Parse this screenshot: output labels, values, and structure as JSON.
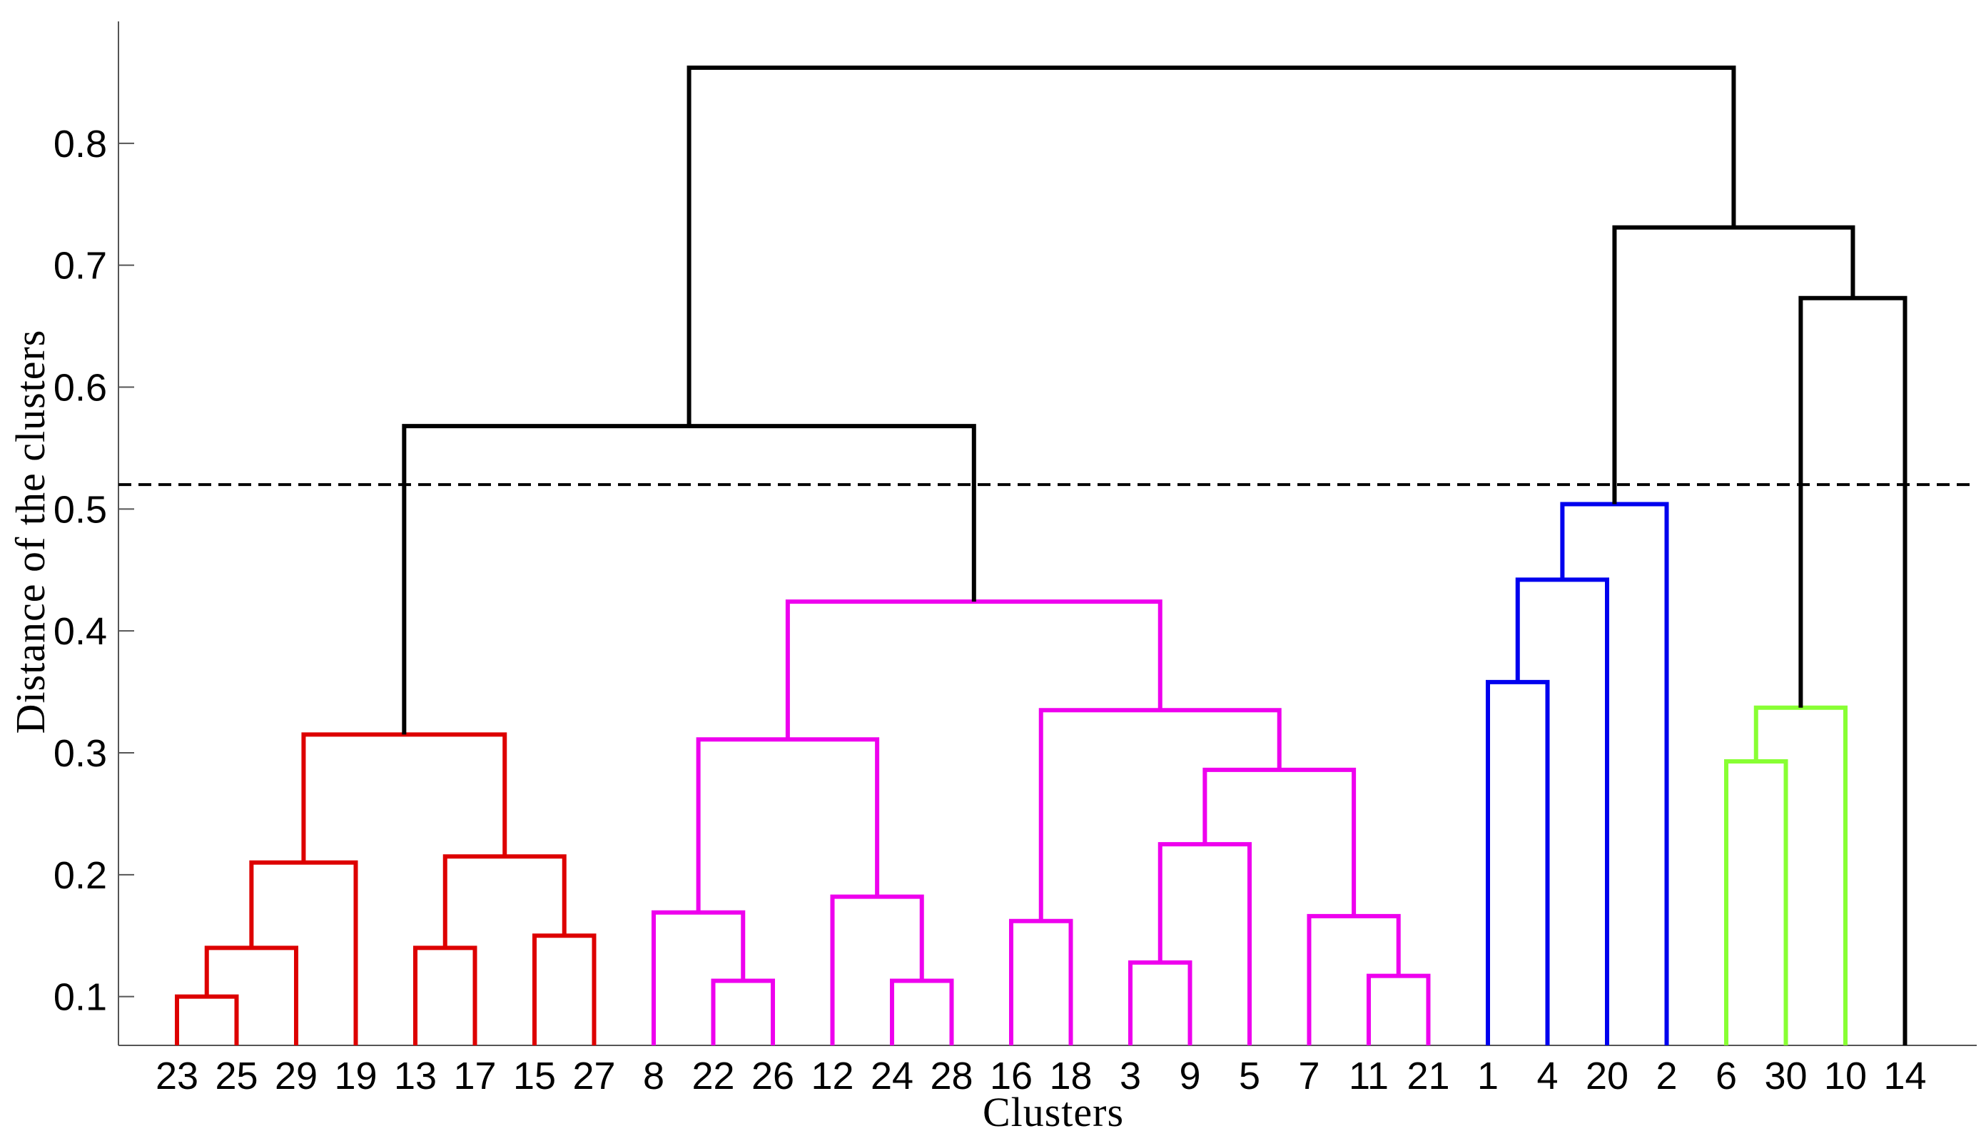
{
  "chart_data": {
    "type": "dendrogram",
    "xlabel": "Clusters",
    "ylabel": "Distance of the clusters",
    "ylim": [
      0.06,
      0.9
    ],
    "yticks": [
      "0.1",
      "0.2",
      "0.3",
      "0.4",
      "0.5",
      "0.6",
      "0.7",
      "0.8"
    ],
    "leaf_order": [
      "23",
      "25",
      "29",
      "19",
      "13",
      "17",
      "15",
      "27",
      "8",
      "22",
      "26",
      "12",
      "24",
      "28",
      "16",
      "18",
      "3",
      "9",
      "5",
      "7",
      "11",
      "21",
      "1",
      "4",
      "20",
      "2",
      "6",
      "30",
      "10",
      "14"
    ],
    "cutoff_line": {
      "y": 0.52,
      "style": "dashed"
    },
    "colors": {
      "red": "#dd0000",
      "magenta": "#ee00ee",
      "blue": "#0000ee",
      "green": "#88ff33",
      "black": "#000000"
    },
    "merges": [
      {
        "left": "23",
        "right": "25",
        "height": 0.1,
        "color": "red"
      },
      {
        "left": "23,25",
        "right": "29",
        "height": 0.14,
        "color": "red"
      },
      {
        "left": "23,25,29",
        "right": "19",
        "height": 0.21,
        "color": "red"
      },
      {
        "left": "13",
        "right": "17",
        "height": 0.14,
        "color": "red"
      },
      {
        "left": "15",
        "right": "27",
        "height": 0.15,
        "color": "red"
      },
      {
        "left": "13,17",
        "right": "15,27",
        "height": 0.215,
        "color": "red"
      },
      {
        "left": "23,25,29,19",
        "right": "13,17,15,27",
        "height": 0.315,
        "color": "red"
      },
      {
        "left": "22",
        "right": "26",
        "height": 0.113,
        "color": "magenta"
      },
      {
        "left": "8",
        "right": "22,26",
        "height": 0.169,
        "color": "magenta"
      },
      {
        "left": "24",
        "right": "28",
        "height": 0.113,
        "color": "magenta"
      },
      {
        "left": "12",
        "right": "24,28",
        "height": 0.182,
        "color": "magenta"
      },
      {
        "left": "8,22,26",
        "right": "12,24,28",
        "height": 0.311,
        "color": "magenta"
      },
      {
        "left": "16",
        "right": "18",
        "height": 0.162,
        "color": "magenta"
      },
      {
        "left": "3",
        "right": "9",
        "height": 0.128,
        "color": "magenta"
      },
      {
        "left": "3,9",
        "right": "5",
        "height": 0.225,
        "color": "magenta"
      },
      {
        "left": "11",
        "right": "21",
        "height": 0.117,
        "color": "magenta"
      },
      {
        "left": "7",
        "right": "11,21",
        "height": 0.166,
        "color": "magenta"
      },
      {
        "left": "3,9,5",
        "right": "7,11,21",
        "height": 0.286,
        "color": "magenta"
      },
      {
        "left": "16,18",
        "right": "3,9,5,7,11,21",
        "height": 0.335,
        "color": "magenta"
      },
      {
        "left": "8,22,26,12,24,28",
        "right": "16,18,3,9,5,7,11,21",
        "height": 0.424,
        "color": "magenta"
      },
      {
        "left": "red-cluster",
        "right": "magenta-cluster",
        "height": 0.568,
        "color": "black"
      },
      {
        "left": "1",
        "right": "4",
        "height": 0.358,
        "color": "blue"
      },
      {
        "left": "1,4",
        "right": "20",
        "height": 0.442,
        "color": "blue"
      },
      {
        "left": "1,4,20",
        "right": "2",
        "height": 0.504,
        "color": "blue"
      },
      {
        "left": "6",
        "right": "30",
        "height": 0.293,
        "color": "green"
      },
      {
        "left": "6,30",
        "right": "10",
        "height": 0.337,
        "color": "green"
      },
      {
        "left": "6,30,10",
        "right": "14",
        "height": 0.673,
        "color": "black"
      },
      {
        "left": "blue-cluster",
        "right": "6,30,10,14",
        "height": 0.731,
        "color": "black"
      },
      {
        "left": "red+magenta",
        "right": "blue+green+14",
        "height": 0.862,
        "color": "black"
      }
    ]
  }
}
